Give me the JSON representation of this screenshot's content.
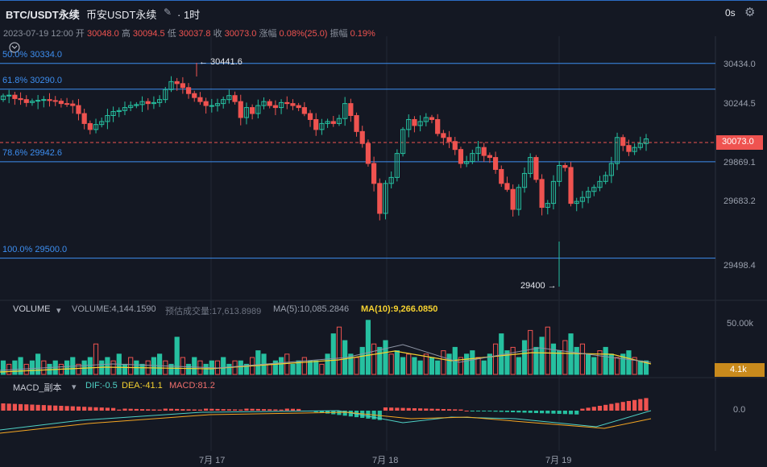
{
  "header": {
    "symbol": "BTC/USDT永续",
    "instrument": "币安USDT永续",
    "edit_icon": "edit-icon",
    "timeframe": "1时",
    "right_label": "0s",
    "settings_icon": "gear-icon"
  },
  "ohlc": {
    "datetime": "2023-07-19 12:00",
    "open_label": "开",
    "open": "30048.0",
    "high_label": "高",
    "high": "30094.5",
    "low_label": "低",
    "low": "30037.8",
    "close_label": "收",
    "close": "30073.0",
    "change_label": "涨幅",
    "change": "0.08%(25.0)",
    "amp_label": "振幅",
    "amp": "0.19%"
  },
  "fib": [
    {
      "label": "50.0% 30334.0",
      "price": 30334.0
    },
    {
      "label": "61.8% 30290.0",
      "price": 30290.0
    },
    {
      "label": "78.6% 29942.6",
      "price": 29942.6
    },
    {
      "label": "100.0% 29500.0",
      "price": 29500.0
    }
  ],
  "price_axis": [
    "30434.0",
    "30244.5",
    "29869.1",
    "29683.2",
    "29498.4"
  ],
  "current_price": "30073.0",
  "annotations": {
    "high": "30441.6",
    "low": "29400"
  },
  "volume": {
    "title": "VOLUME",
    "value_label": "VOLUME:4,144.1590",
    "est_label": "预估成交量:17,613.8989",
    "ma5": "MA(5):10,085.2846",
    "ma10": "MA(10):9,266.0850",
    "axis_top": "50.00k",
    "current": "4.1k"
  },
  "macd": {
    "title": "MACD_副本",
    "dif": "DIF:-0.5",
    "dea": "DEA:-41.1",
    "macd": "MACD:81.2",
    "axis_zero": "0.0"
  },
  "dates": [
    "7月 17",
    "7月 18",
    "7月 19"
  ],
  "colors": {
    "up": "#26c0a0",
    "down": "#ef5350",
    "background": "#141823",
    "fib_line": "#3d8ef0",
    "ma10": "#f5d130",
    "accent": "#2b6cc4"
  }
}
